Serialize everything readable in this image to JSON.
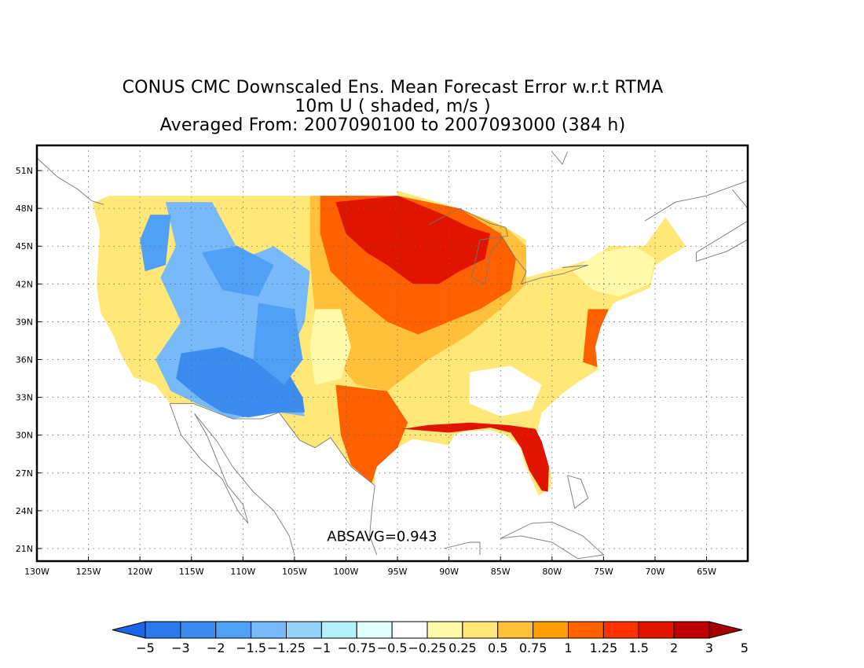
{
  "title": {
    "line1": "CONUS CMC Downscaled Ens. Mean Forecast Error w.r.t RTMA",
    "line2": "10m U ( shaded, m/s )",
    "line3": "Averaged From: 2007090100 to 2007093000 (384 h)"
  },
  "map": {
    "projection": "lat-lon",
    "lon_range": [
      -130,
      -61
    ],
    "lat_range": [
      20,
      53
    ],
    "x_ticks": [
      {
        "lon": -130,
        "label": "130W"
      },
      {
        "lon": -125,
        "label": "125W"
      },
      {
        "lon": -120,
        "label": "120W"
      },
      {
        "lon": -115,
        "label": "115W"
      },
      {
        "lon": -110,
        "label": "110W"
      },
      {
        "lon": -105,
        "label": "105W"
      },
      {
        "lon": -100,
        "label": "100W"
      },
      {
        "lon": -95,
        "label": "95W"
      },
      {
        "lon": -90,
        "label": "90W"
      },
      {
        "lon": -85,
        "label": "85W"
      },
      {
        "lon": -80,
        "label": "80W"
      },
      {
        "lon": -75,
        "label": "75W"
      },
      {
        "lon": -70,
        "label": "70W"
      },
      {
        "lon": -65,
        "label": "65W"
      }
    ],
    "y_ticks": [
      {
        "lat": 21,
        "label": "21N"
      },
      {
        "lat": 24,
        "label": "24N"
      },
      {
        "lat": 27,
        "label": "27N"
      },
      {
        "lat": 30,
        "label": "30N"
      },
      {
        "lat": 33,
        "label": "33N"
      },
      {
        "lat": 36,
        "label": "36N"
      },
      {
        "lat": 39,
        "label": "39N"
      },
      {
        "lat": 42,
        "label": "42N"
      },
      {
        "lat": 45,
        "label": "45N"
      },
      {
        "lat": 48,
        "label": "48N"
      },
      {
        "lat": 51,
        "label": "51N"
      }
    ],
    "grid": "dotted",
    "statistic": "ABSAVG=0.943",
    "statistic_lonlat": [
      -96.5,
      21.6
    ]
  },
  "colorbar": {
    "labels": [
      "-5",
      "-3",
      "-2",
      "-1.5",
      "-1.25",
      "-1",
      "-0.75",
      "-0.5",
      "-0.25",
      "0.25",
      "0.5",
      "0.75",
      "1",
      "1.25",
      "1.5",
      "2",
      "3",
      "5"
    ],
    "colors": [
      "#1e64e6",
      "#2d78eb",
      "#3c8cf0",
      "#50a0f5",
      "#78b9fa",
      "#96d2fa",
      "#b4f0fa",
      "#e1ffff",
      "#ffffff",
      "#fffaaa",
      "#ffe878",
      "#ffc03c",
      "#ffa000",
      "#ff6000",
      "#ff3200",
      "#e11400",
      "#c00000",
      "#a50000"
    ]
  },
  "shaded_regions": [
    {
      "name": "conus-base",
      "color": "#ffe878",
      "points": [
        [
          -124.6,
          48.4
        ],
        [
          -123,
          49
        ],
        [
          -95,
          49
        ],
        [
          -95,
          49.4
        ],
        [
          -89,
          48
        ],
        [
          -84.5,
          46.5
        ],
        [
          -82.5,
          45.5
        ],
        [
          -82.5,
          42.5
        ],
        [
          -79,
          43.3
        ],
        [
          -76,
          44
        ],
        [
          -74.5,
          45
        ],
        [
          -71,
          45
        ],
        [
          -69,
          47.3
        ],
        [
          -67,
          45
        ],
        [
          -70,
          43.5
        ],
        [
          -70.5,
          41.7
        ],
        [
          -74,
          40.5
        ],
        [
          -75.5,
          38.5
        ],
        [
          -76,
          36.8
        ],
        [
          -75.5,
          35.2
        ],
        [
          -77.5,
          34.2
        ],
        [
          -79,
          33.3
        ],
        [
          -81,
          31.8
        ],
        [
          -81.5,
          30
        ],
        [
          -80.1,
          27
        ],
        [
          -80.1,
          25.8
        ],
        [
          -81.3,
          25.2
        ],
        [
          -82,
          26.5
        ],
        [
          -82.8,
          28
        ],
        [
          -83,
          29
        ],
        [
          -84.5,
          30
        ],
        [
          -86,
          30.4
        ],
        [
          -88.5,
          30.3
        ],
        [
          -89.5,
          30
        ],
        [
          -90,
          29.2
        ],
        [
          -93.5,
          29.7
        ],
        [
          -95,
          29
        ],
        [
          -97.2,
          27.7
        ],
        [
          -97.2,
          26
        ],
        [
          -99.5,
          27.5
        ],
        [
          -101.5,
          29.8
        ],
        [
          -103,
          29
        ],
        [
          -104.5,
          29.6
        ],
        [
          -106.5,
          31.8
        ],
        [
          -111,
          31.3
        ],
        [
          -114.8,
          32.5
        ],
        [
          -117.1,
          32.5
        ],
        [
          -118.5,
          34
        ],
        [
          -120.6,
          34.6
        ],
        [
          -121.9,
          36.5
        ],
        [
          -122.5,
          37.8
        ],
        [
          -123.8,
          39.7
        ],
        [
          -124.2,
          41.8
        ],
        [
          -124.1,
          43.5
        ],
        [
          -123.9,
          46.2
        ],
        [
          -124.6,
          48.4
        ]
      ]
    },
    {
      "name": "west-cool-1",
      "color": "#78b9fa",
      "points": [
        [
          -117.5,
          48.5
        ],
        [
          -113,
          48.5
        ],
        [
          -110,
          44
        ],
        [
          -107,
          45
        ],
        [
          -103.5,
          43
        ],
        [
          -104,
          39
        ],
        [
          -106,
          35.5
        ],
        [
          -104,
          31.5
        ],
        [
          -106.5,
          31.8
        ],
        [
          -111,
          31.3
        ],
        [
          -114.5,
          32.5
        ],
        [
          -117,
          33.5
        ],
        [
          -118.5,
          36
        ],
        [
          -116,
          39
        ],
        [
          -118,
          42.5
        ],
        [
          -116.5,
          45
        ],
        [
          -117.5,
          48.5
        ]
      ]
    },
    {
      "name": "sw-blue",
      "color": "#3c8cf0",
      "points": [
        [
          -116,
          36.5
        ],
        [
          -112,
          37
        ],
        [
          -109,
          36
        ],
        [
          -106,
          35.5
        ],
        [
          -104.2,
          33
        ],
        [
          -104,
          31.8
        ],
        [
          -106.5,
          31.8
        ],
        [
          -109.5,
          31.4
        ],
        [
          -112,
          31.8
        ],
        [
          -114,
          32.8
        ],
        [
          -116.5,
          34.5
        ],
        [
          -116,
          36.5
        ]
      ]
    },
    {
      "name": "west-blue-2",
      "color": "#50a0f5",
      "points": [
        [
          -114,
          44.5
        ],
        [
          -110.5,
          45
        ],
        [
          -107,
          43.5
        ],
        [
          -108.5,
          41
        ],
        [
          -112,
          41.5
        ],
        [
          -114,
          44.5
        ]
      ]
    },
    {
      "name": "west-blue-3",
      "color": "#50a0f5",
      "points": [
        [
          -108.5,
          40.5
        ],
        [
          -105,
          40
        ],
        [
          -104.2,
          36
        ],
        [
          -106,
          34
        ],
        [
          -109,
          36
        ],
        [
          -108.5,
          40.5
        ]
      ]
    },
    {
      "name": "nw-blue",
      "color": "#50a0f5",
      "points": [
        [
          -119,
          47.5
        ],
        [
          -117,
          47.5
        ],
        [
          -117.5,
          43.5
        ],
        [
          -119.5,
          43
        ],
        [
          -120,
          45.5
        ],
        [
          -119,
          47.5
        ]
      ]
    },
    {
      "name": "plains-warm",
      "color": "#ffc03c",
      "points": [
        [
          -103.5,
          49
        ],
        [
          -95,
          49
        ],
        [
          -89,
          48
        ],
        [
          -84.5,
          46.5
        ],
        [
          -82.5,
          45
        ],
        [
          -82.5,
          42
        ],
        [
          -85,
          40
        ],
        [
          -88,
          38
        ],
        [
          -92,
          36
        ],
        [
          -96,
          33.5
        ],
        [
          -99,
          34
        ],
        [
          -101,
          36
        ],
        [
          -103,
          39.5
        ],
        [
          -103.5,
          44
        ],
        [
          -103.5,
          49
        ]
      ]
    },
    {
      "name": "plains-orange",
      "color": "#ff6000",
      "points": [
        [
          -102.5,
          49
        ],
        [
          -95,
          49
        ],
        [
          -89,
          48
        ],
        [
          -85,
          46
        ],
        [
          -83.5,
          44
        ],
        [
          -84,
          41.5
        ],
        [
          -87,
          40
        ],
        [
          -90,
          39
        ],
        [
          -93,
          38
        ],
        [
          -96,
          39
        ],
        [
          -99,
          41
        ],
        [
          -101.5,
          43
        ],
        [
          -102.5,
          46
        ],
        [
          -102.5,
          49
        ]
      ]
    },
    {
      "name": "plains-red",
      "color": "#e11400",
      "points": [
        [
          -101,
          48.5
        ],
        [
          -95,
          49
        ],
        [
          -90.5,
          47.5
        ],
        [
          -88,
          46.5
        ],
        [
          -86,
          46
        ],
        [
          -86.5,
          44
        ],
        [
          -89,
          43
        ],
        [
          -91,
          42
        ],
        [
          -93.5,
          42
        ],
        [
          -96,
          43.5
        ],
        [
          -98,
          44.5
        ],
        [
          -100,
          46
        ],
        [
          -101,
          48.5
        ]
      ]
    },
    {
      "name": "texas-warm",
      "color": "#ff6000",
      "points": [
        [
          -101,
          34
        ],
        [
          -96,
          33.5
        ],
        [
          -94,
          31
        ],
        [
          -95,
          29
        ],
        [
          -97,
          27.5
        ],
        [
          -97.5,
          26.2
        ],
        [
          -99.5,
          27.6
        ],
        [
          -100.5,
          30
        ],
        [
          -101,
          34
        ]
      ]
    },
    {
      "name": "gulf-coast-red",
      "color": "#e11400",
      "points": [
        [
          -94.5,
          30.5
        ],
        [
          -90,
          30.2
        ],
        [
          -86,
          30.6
        ],
        [
          -84,
          30.2
        ],
        [
          -83,
          29
        ],
        [
          -82.2,
          27.2
        ],
        [
          -81,
          25.6
        ],
        [
          -80.4,
          25.5
        ],
        [
          -80.3,
          27.5
        ],
        [
          -81,
          29.5
        ],
        [
          -81.6,
          30.5
        ],
        [
          -84.3,
          30.8
        ],
        [
          -88,
          31
        ],
        [
          -92,
          30.8
        ],
        [
          -94.5,
          30.5
        ]
      ]
    },
    {
      "name": "east-coast-orange",
      "color": "#ff6000",
      "points": [
        [
          -76.5,
          40
        ],
        [
          -74.5,
          40
        ],
        [
          -75.3,
          38.5
        ],
        [
          -75.8,
          37
        ],
        [
          -75.6,
          35.4
        ],
        [
          -77,
          35.8
        ],
        [
          -76.5,
          40
        ]
      ]
    },
    {
      "name": "northeast-light",
      "color": "#fffaaa",
      "points": [
        [
          -78,
          43
        ],
        [
          -75.5,
          44.5
        ],
        [
          -72,
          45
        ],
        [
          -70,
          44
        ],
        [
          -70.5,
          42
        ],
        [
          -73.5,
          41
        ],
        [
          -76,
          41.5
        ],
        [
          -78,
          43
        ]
      ]
    },
    {
      "name": "se-pale",
      "color": "#ffffff",
      "points": [
        [
          -88,
          35
        ],
        [
          -84,
          35.5
        ],
        [
          -81,
          34
        ],
        [
          -82,
          32
        ],
        [
          -85,
          31.5
        ],
        [
          -88,
          32.5
        ],
        [
          -88,
          35
        ]
      ]
    },
    {
      "name": "central-pale",
      "color": "#fffaaa",
      "points": [
        [
          -103,
          40
        ],
        [
          -100.5,
          40
        ],
        [
          -99.5,
          37
        ],
        [
          -100.5,
          34.5
        ],
        [
          -103,
          34
        ],
        [
          -103.5,
          37
        ],
        [
          -103,
          40
        ]
      ]
    }
  ],
  "coast_lines": [
    {
      "name": "canada-north-coast",
      "points": [
        [
          -130,
          52
        ],
        [
          -128,
          50.5
        ],
        [
          -126,
          49.5
        ],
        [
          -124.7,
          48.6
        ],
        [
          -123.5,
          48.3
        ]
      ]
    },
    {
      "name": "mexico-west-coast",
      "points": [
        [
          -117.1,
          32.5
        ],
        [
          -116,
          30
        ],
        [
          -114,
          28
        ],
        [
          -112,
          26.5
        ],
        [
          -110.5,
          24
        ],
        [
          -109.5,
          23
        ],
        [
          -110,
          24.5
        ],
        [
          -111.5,
          26
        ],
        [
          -112.5,
          28
        ],
        [
          -113.5,
          30
        ],
        [
          -114.7,
          31.7
        ]
      ]
    },
    {
      "name": "mexico-mainland",
      "points": [
        [
          -114.7,
          31.7
        ],
        [
          -112.5,
          29.5
        ],
        [
          -111,
          27.5
        ],
        [
          -109,
          25.5
        ],
        [
          -107,
          24
        ],
        [
          -105.5,
          22
        ],
        [
          -105,
          20.5
        ]
      ]
    },
    {
      "name": "mexico-gulf-coast",
      "points": [
        [
          -97.2,
          26
        ],
        [
          -97.5,
          24
        ],
        [
          -97.7,
          22
        ],
        [
          -97,
          20.5
        ]
      ]
    },
    {
      "name": "yucatan",
      "points": [
        [
          -90.5,
          21
        ],
        [
          -88,
          21.5
        ],
        [
          -87,
          21.5
        ],
        [
          -87,
          20.5
        ]
      ]
    },
    {
      "name": "cuba",
      "points": [
        [
          -85,
          21.8
        ],
        [
          -82,
          23
        ],
        [
          -80,
          23.1
        ],
        [
          -77,
          22
        ],
        [
          -75,
          20.5
        ],
        [
          -77.5,
          20.2
        ],
        [
          -80,
          21.5
        ],
        [
          -83,
          22
        ],
        [
          -85,
          21.8
        ]
      ]
    },
    {
      "name": "bahamas",
      "points": [
        [
          -78.5,
          26.8
        ],
        [
          -77.2,
          26.5
        ],
        [
          -76.5,
          25
        ],
        [
          -77.8,
          24.2
        ],
        [
          -78.5,
          26.8
        ]
      ]
    },
    {
      "name": "nova-scotia",
      "points": [
        [
          -66,
          44.5
        ],
        [
          -64,
          45.5
        ],
        [
          -61,
          47
        ],
        [
          -60,
          46
        ],
        [
          -63,
          44.6
        ],
        [
          -66,
          43.8
        ],
        [
          -66,
          44.5
        ]
      ]
    },
    {
      "name": "quebec-coast",
      "points": [
        [
          -71,
          47
        ],
        [
          -68,
          48.5
        ],
        [
          -65,
          49
        ],
        [
          -61,
          50.2
        ]
      ]
    },
    {
      "name": "newfoundland-west",
      "points": [
        [
          -61,
          48
        ],
        [
          -62.5,
          49.5
        ]
      ]
    },
    {
      "name": "hudson-bay-east",
      "points": [
        [
          -80,
          52.5
        ],
        [
          -79,
          51.5
        ],
        [
          -78.5,
          52.5
        ]
      ]
    }
  ],
  "border_lines": [
    {
      "name": "us-mexico-border",
      "points": [
        [
          -117.1,
          32.5
        ],
        [
          -114.8,
          32.5
        ],
        [
          -111,
          31.3
        ],
        [
          -108.2,
          31.3
        ],
        [
          -106.5,
          31.8
        ],
        [
          -104.5,
          29.6
        ],
        [
          -103,
          29
        ],
        [
          -101.5,
          29.8
        ],
        [
          -99.5,
          27.5
        ],
        [
          -97.2,
          26
        ]
      ]
    },
    {
      "name": "great-lakes",
      "points": [
        [
          -92,
          46.7
        ],
        [
          -89,
          48
        ],
        [
          -86,
          46.8
        ],
        [
          -84.5,
          46.5
        ],
        [
          -84.3,
          45.8
        ],
        [
          -87,
          45.5
        ],
        [
          -87.8,
          42.5
        ],
        [
          -86.5,
          42
        ],
        [
          -86,
          44.5
        ],
        [
          -84.8,
          45.7
        ],
        [
          -83.5,
          44
        ],
        [
          -82.5,
          43
        ],
        [
          -83,
          42
        ],
        [
          -81,
          42.5
        ],
        [
          -79,
          42.8
        ],
        [
          -76.5,
          43.5
        ],
        [
          -79,
          43.3
        ]
      ]
    }
  ]
}
